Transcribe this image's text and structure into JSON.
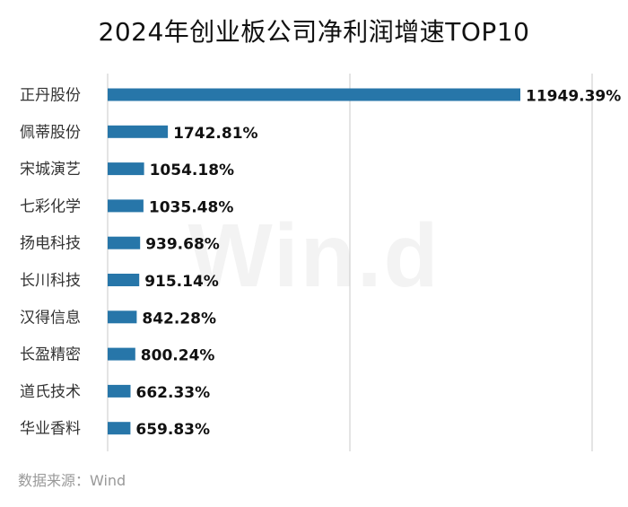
{
  "title": "2024年创业板公司净利润增速TOP10",
  "watermark": "Win.d",
  "source": "数据来源：Wind",
  "colors": {
    "bar": "#2776a9",
    "grid": "#c8c8c8",
    "label": "#333333",
    "value": "#111111"
  },
  "chart_data": {
    "type": "bar",
    "orientation": "horizontal",
    "categories": [
      "正丹股份",
      "佩蒂股份",
      "宋城演艺",
      "七彩化学",
      "扬电科技",
      "长川科技",
      "汉得信息",
      "长盈精密",
      "道氏技术",
      "华业香料"
    ],
    "values": [
      11949.39,
      1742.81,
      1054.18,
      1035.48,
      939.68,
      915.14,
      842.28,
      800.24,
      662.33,
      659.83
    ],
    "value_labels": [
      "11949.39%",
      "1742.81%",
      "1054.18%",
      "1035.48%",
      "939.68%",
      "915.14%",
      "842.28%",
      "800.24%",
      "662.33%",
      "659.83%"
    ],
    "unit": "%",
    "grid": true,
    "legend": false
  }
}
